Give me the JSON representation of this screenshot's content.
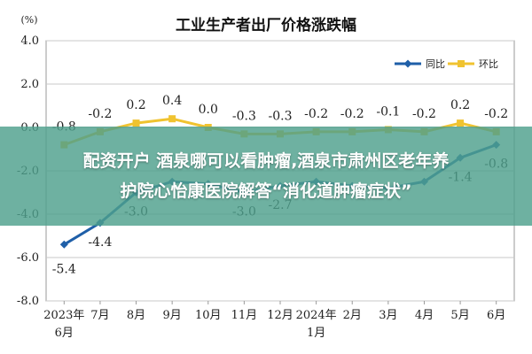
{
  "chart_data": {
    "type": "line",
    "title": "工业生产者出厂价格涨跌幅",
    "unit": "(%)",
    "categories": [
      [
        "2023年",
        "6月"
      ],
      [
        "7月"
      ],
      [
        "8月"
      ],
      [
        "9月"
      ],
      [
        "10月"
      ],
      [
        "11月"
      ],
      [
        "12月"
      ],
      [
        "2024年",
        "1月"
      ],
      [
        "2月"
      ],
      [
        "3月"
      ],
      [
        "4月"
      ],
      [
        "5月"
      ],
      [
        "6月"
      ]
    ],
    "ylim": [
      -8.0,
      4.0
    ],
    "yticks": [
      4.0,
      2.0,
      0.0,
      -2.0,
      -4.0,
      -6.0,
      -8.0
    ],
    "ytick_labels": [
      "4.0",
      "2.0",
      "0.0",
      "-2.0",
      "-4.0",
      "-6.0",
      "-8.0"
    ],
    "grid": true,
    "legend_position": "top-right",
    "series": [
      {
        "name": "同比",
        "color": "#1f5fa8",
        "values": [
          -5.4,
          -4.4,
          -3.0,
          -2.5,
          -2.6,
          -3.0,
          -2.7,
          -2.5,
          -2.7,
          -2.8,
          -2.5,
          -1.4,
          -0.8
        ],
        "labels": [
          "-5.4",
          "-4.4",
          "-3.0",
          "",
          "",
          "-3.0",
          "-2.7",
          "",
          "",
          "",
          "",
          "-1.4",
          "-0.8"
        ]
      },
      {
        "name": "环比",
        "color": "#f0c330",
        "values": [
          -0.8,
          -0.2,
          0.2,
          0.4,
          0.0,
          -0.3,
          -0.3,
          -0.2,
          -0.2,
          -0.1,
          -0.2,
          0.2,
          -0.2
        ],
        "labels": [
          "-0.8",
          "-0.2",
          "0.2",
          "0.4",
          "0.0",
          "-0.3",
          "-0.3",
          "-0.2",
          "-0.2",
          "-0.1",
          "-0.2",
          "0.2",
          "-0.2"
        ]
      }
    ]
  },
  "banner": {
    "line1": "配资开户 酒泉哪可以看肿瘤,酒泉市肃州区老年养",
    "line2": "护院心怡康医院解答“消化道肿瘤症状”"
  }
}
